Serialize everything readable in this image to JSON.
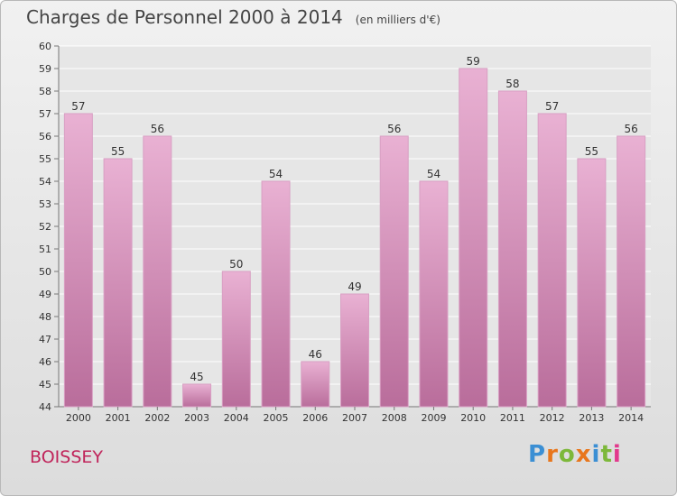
{
  "header": {
    "title": "Charges de Personnel 2000 à 2014",
    "unit": "(en milliers d'€)"
  },
  "footer": {
    "town": "BOISSEY",
    "logo": "Proxiti"
  },
  "colors": {
    "bar_top": "#e9b1d3",
    "bar_bottom": "#b96d9b",
    "grid": "#ffffff",
    "town": "#c0245a",
    "logo_letters": [
      "#3b8fd4",
      "#e8761c",
      "#7db83a",
      "#e8761c",
      "#3b8fd4",
      "#7db83a",
      "#e23a8c"
    ]
  },
  "chart_data": {
    "type": "bar",
    "title": "Charges de Personnel 2000 à 2014",
    "subtitle": "(en milliers d'€)",
    "categories": [
      "2000",
      "2001",
      "2002",
      "2003",
      "2004",
      "2005",
      "2006",
      "2007",
      "2008",
      "2009",
      "2010",
      "2011",
      "2012",
      "2013",
      "2014"
    ],
    "values": [
      57,
      55,
      56,
      45,
      50,
      54,
      46,
      49,
      56,
      54,
      59,
      58,
      57,
      55,
      56
    ],
    "ylim": [
      44,
      60
    ],
    "yticks": [
      44,
      45,
      46,
      47,
      48,
      49,
      50,
      51,
      52,
      53,
      54,
      55,
      56,
      57,
      58,
      59,
      60
    ],
    "grid": true,
    "xlabel": "",
    "ylabel": ""
  }
}
